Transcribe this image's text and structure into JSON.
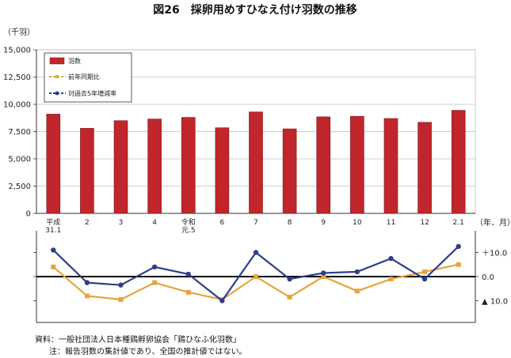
{
  "title": "図26　採卵用めすひなえ付け羽数の推移",
  "notes": [
    "資料：一般社団法人日本種鶏孵卵協会「鶏ひなふ化羽数」",
    "注：報告羽数の集計値であり、全国の推計値ではない。"
  ],
  "colors": {
    "bar": "#c0262b",
    "bar_edge": "#7a1a1c",
    "yoy": "#e8a33d",
    "avg5": "#2e3e8c",
    "grid": "#bfbfbf",
    "axis": "#333333"
  },
  "chart_data": [
    {
      "type": "bar",
      "ylabel": "（千羽）",
      "ylim": [
        0,
        15000
      ],
      "yticks": [
        "0",
        "2,500",
        "5,000",
        "7,500",
        "10,000",
        "12,500",
        "15,000"
      ],
      "ytick_values": [
        0,
        2500,
        5000,
        7500,
        10000,
        12500,
        15000
      ],
      "categories": [
        "平成\n31.1",
        "2",
        "3",
        "4",
        "令和\n元.5",
        "6",
        "7",
        "8",
        "9",
        "10",
        "11",
        "12",
        "2.1"
      ],
      "series": [
        {
          "name": "羽数",
          "values": [
            9100,
            7800,
            8500,
            8650,
            8800,
            7850,
            9300,
            7750,
            8850,
            8900,
            8700,
            8350,
            9450
          ]
        }
      ],
      "legend": [
        "羽数",
        "前年同期比",
        "対過去5年増減率"
      ],
      "legend_placement": "top-left",
      "grid": true
    },
    {
      "type": "line",
      "xlabel": "（年．月）",
      "ylim": [
        -19,
        19
      ],
      "yticks": [
        "＋10.0",
        "0.0",
        "▲ 10.0"
      ],
      "ytick_values": [
        10,
        0,
        -10
      ],
      "series": [
        {
          "name": "前年同期比",
          "values": [
            4.0,
            -8.0,
            -9.5,
            -2.5,
            -6.5,
            -9.5,
            0.0,
            -8.5,
            0.0,
            -6.0,
            -1.0,
            2.0,
            5.0
          ]
        },
        {
          "name": "対過去5年増減率",
          "values": [
            11.0,
            -2.5,
            -3.5,
            4.0,
            1.0,
            -10.0,
            10.0,
            -1.0,
            1.5,
            2.0,
            7.5,
            -1.0,
            12.5
          ]
        }
      ],
      "grid": false
    }
  ]
}
